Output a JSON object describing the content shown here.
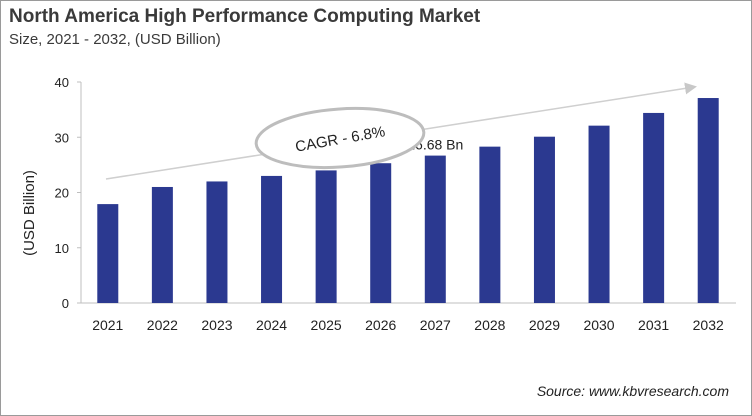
{
  "chart_data": {
    "type": "bar",
    "title": "North America High Performance Computing Market",
    "subtitle": "Size, 2021 - 2032, (USD Billion)",
    "xlabel": "",
    "ylabel": "(USD Billion)",
    "categories": [
      "2021",
      "2022",
      "2023",
      "2024",
      "2025",
      "2026",
      "2027",
      "2028",
      "2029",
      "2030",
      "2031",
      "2032"
    ],
    "values": [
      17.9,
      21.0,
      22.0,
      23.0,
      24.0,
      25.3,
      26.68,
      28.3,
      30.1,
      32.1,
      34.4,
      37.1
    ],
    "ylim": [
      0,
      40
    ],
    "yticks": [
      0,
      10,
      20,
      30,
      40
    ],
    "grid": false,
    "bar_color": "#2b3990",
    "data_labels": [
      {
        "category": "2027",
        "text": "26.68 Bn"
      }
    ],
    "annotation": "CAGR - 6.8%",
    "source": "Source: www.kbvresearch.com"
  }
}
